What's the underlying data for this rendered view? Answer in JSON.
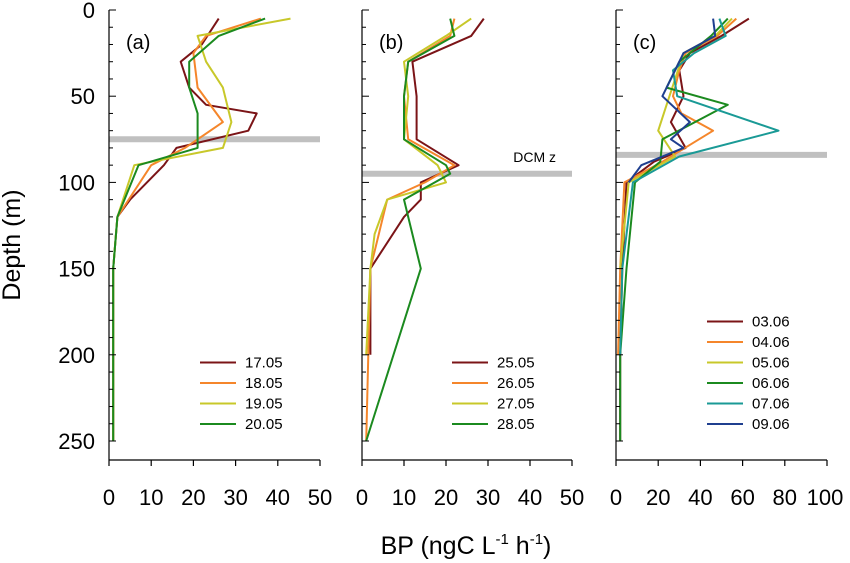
{
  "figure": {
    "ylabel": "Depth (m)",
    "xlabel_main": "BP (ngC L",
    "xlabel_sup1": "-1",
    "xlabel_mid": " h",
    "xlabel_sup2": "-1",
    "xlabel_end": ")"
  },
  "chart_data": [
    {
      "type": "line",
      "panel_label": "(a)",
      "xlim": [
        0,
        50
      ],
      "ylim": [
        250,
        0
      ],
      "xticks": [
        "0",
        "10",
        "20",
        "30",
        "40",
        "50"
      ],
      "yticks": [
        "0",
        "50",
        "100",
        "150",
        "200",
        "250"
      ],
      "legend_position": "bottom-right",
      "dcm_depth": 75,
      "dcm_label": "",
      "series": [
        {
          "name": "17.05",
          "color": "#7b1417",
          "points": [
            [
              26,
              5
            ],
            [
              22,
              20
            ],
            [
              17,
              30
            ],
            [
              19,
              45
            ],
            [
              23,
              55
            ],
            [
              35,
              60
            ],
            [
              33,
              70
            ],
            [
              16,
              80
            ],
            [
              13,
              90
            ],
            [
              5,
              110
            ],
            [
              2,
              120
            ],
            [
              1,
              150
            ],
            [
              1,
              200
            ],
            [
              1,
              250
            ]
          ]
        },
        {
          "name": "18.05",
          "color": "#f5862b",
          "points": [
            [
              36,
              5
            ],
            [
              23,
              15
            ],
            [
              20,
              25
            ],
            [
              21,
              45
            ],
            [
              27,
              65
            ],
            [
              18,
              80
            ],
            [
              10,
              90
            ],
            [
              2,
              120
            ],
            [
              1,
              150
            ],
            [
              1,
              250
            ]
          ]
        },
        {
          "name": "19.05",
          "color": "#c8c82a",
          "points": [
            [
              43,
              5
            ],
            [
              21,
              15
            ],
            [
              23,
              30
            ],
            [
              27,
              45
            ],
            [
              29,
              65
            ],
            [
              27,
              80
            ],
            [
              6,
              90
            ],
            [
              2,
              120
            ],
            [
              1,
              150
            ],
            [
              1,
              250
            ]
          ]
        },
        {
          "name": "20.05",
          "color": "#1b8a1f",
          "points": [
            [
              37,
              5
            ],
            [
              26,
              15
            ],
            [
              19,
              30
            ],
            [
              19,
              45
            ],
            [
              21,
              60
            ],
            [
              21,
              80
            ],
            [
              7,
              90
            ],
            [
              2,
              120
            ],
            [
              1,
              150
            ],
            [
              1,
              250
            ]
          ]
        }
      ]
    },
    {
      "type": "line",
      "panel_label": "(b)",
      "xlim": [
        0,
        50
      ],
      "ylim": [
        250,
        0
      ],
      "xticks": [
        "0",
        "10",
        "20",
        "30",
        "40",
        "50"
      ],
      "yticks": [],
      "legend_position": "bottom-right",
      "dcm_depth": 95,
      "dcm_label": "DCM z",
      "series": [
        {
          "name": "25.05",
          "color": "#7b1417",
          "points": [
            [
              29,
              5
            ],
            [
              26,
              15
            ],
            [
              12,
              30
            ],
            [
              13,
              50
            ],
            [
              13,
              75
            ],
            [
              23,
              90
            ],
            [
              14,
              100
            ],
            [
              14,
              110
            ],
            [
              10,
              120
            ],
            [
              2,
              150
            ],
            [
              2,
              200
            ]
          ]
        },
        {
          "name": "26.05",
          "color": "#f5862b",
          "points": [
            [
              22,
              5
            ],
            [
              21,
              15
            ],
            [
              11,
              30
            ],
            [
              10,
              50
            ],
            [
              11,
              75
            ],
            [
              22,
              90
            ],
            [
              15,
              100
            ],
            [
              6,
              110
            ],
            [
              4,
              130
            ],
            [
              2,
              150
            ],
            [
              1,
              250
            ]
          ]
        },
        {
          "name": "27.05",
          "color": "#c8c82a",
          "points": [
            [
              26,
              5
            ],
            [
              20,
              15
            ],
            [
              10,
              30
            ],
            [
              11,
              50
            ],
            [
              10,
              75
            ],
            [
              18,
              90
            ],
            [
              20,
              100
            ],
            [
              6,
              110
            ],
            [
              3,
              130
            ],
            [
              2,
              150
            ],
            [
              1,
              200
            ]
          ]
        },
        {
          "name": "28.05",
          "color": "#1b8a1f",
          "points": [
            [
              21,
              5
            ],
            [
              22,
              15
            ],
            [
              11,
              30
            ],
            [
              10,
              50
            ],
            [
              10,
              75
            ],
            [
              20,
              90
            ],
            [
              21,
              95
            ],
            [
              10,
              110
            ],
            [
              14,
              150
            ],
            [
              1,
              250
            ]
          ]
        }
      ]
    },
    {
      "type": "line",
      "panel_label": "(c)",
      "xlim": [
        0,
        100
      ],
      "ylim": [
        250,
        0
      ],
      "xticks": [
        "0",
        "20",
        "40",
        "60",
        "80",
        "100"
      ],
      "yticks": [],
      "legend_position": "bottom-right",
      "dcm_depth": 84,
      "dcm_label": "",
      "series": [
        {
          "name": "03.06",
          "color": "#7b1417",
          "points": [
            [
              63,
              5
            ],
            [
              50,
              15
            ],
            [
              35,
              25
            ],
            [
              30,
              35
            ],
            [
              32,
              50
            ],
            [
              26,
              65
            ],
            [
              33,
              80
            ],
            [
              18,
              88
            ],
            [
              5,
              100
            ],
            [
              3,
              150
            ],
            [
              2,
              200
            ],
            [
              2,
              250
            ]
          ]
        },
        {
          "name": "04.06",
          "color": "#f5862b",
          "points": [
            [
              57,
              5
            ],
            [
              48,
              15
            ],
            [
              33,
              25
            ],
            [
              30,
              35
            ],
            [
              27,
              50
            ],
            [
              31,
              60
            ],
            [
              46,
              70
            ],
            [
              22,
              88
            ],
            [
              4,
              100
            ],
            [
              2,
              150
            ],
            [
              1,
              200
            ]
          ]
        },
        {
          "name": "05.06",
          "color": "#c8c82a",
          "points": [
            [
              55,
              5
            ],
            [
              47,
              15
            ],
            [
              32,
              25
            ],
            [
              28,
              40
            ],
            [
              24,
              55
            ],
            [
              20,
              70
            ],
            [
              28,
              85
            ],
            [
              6,
              100
            ],
            [
              2,
              150
            ]
          ]
        },
        {
          "name": "06.06",
          "color": "#1b8a1f",
          "points": [
            [
              53,
              5
            ],
            [
              45,
              15
            ],
            [
              30,
              30
            ],
            [
              24,
              45
            ],
            [
              53,
              55
            ],
            [
              22,
              75
            ],
            [
              21,
              88
            ],
            [
              9,
              100
            ],
            [
              5,
              150
            ],
            [
              2,
              200
            ],
            [
              2,
              250
            ]
          ]
        },
        {
          "name": "07.06",
          "color": "#1a9a96",
          "points": [
            [
              49,
              5
            ],
            [
              52,
              15
            ],
            [
              37,
              25
            ],
            [
              27,
              35
            ],
            [
              29,
              50
            ],
            [
              77,
              70
            ],
            [
              30,
              85
            ],
            [
              8,
              100
            ],
            [
              3,
              150
            ],
            [
              2,
              200
            ]
          ]
        },
        {
          "name": "09.06",
          "color": "#1f3f8f",
          "points": [
            [
              46,
              5
            ],
            [
              47,
              15
            ],
            [
              32,
              25
            ],
            [
              28,
              35
            ],
            [
              22,
              50
            ],
            [
              35,
              65
            ],
            [
              26,
              75
            ],
            [
              32,
              80
            ],
            [
              12,
              90
            ],
            [
              6,
              100
            ]
          ]
        }
      ]
    }
  ]
}
